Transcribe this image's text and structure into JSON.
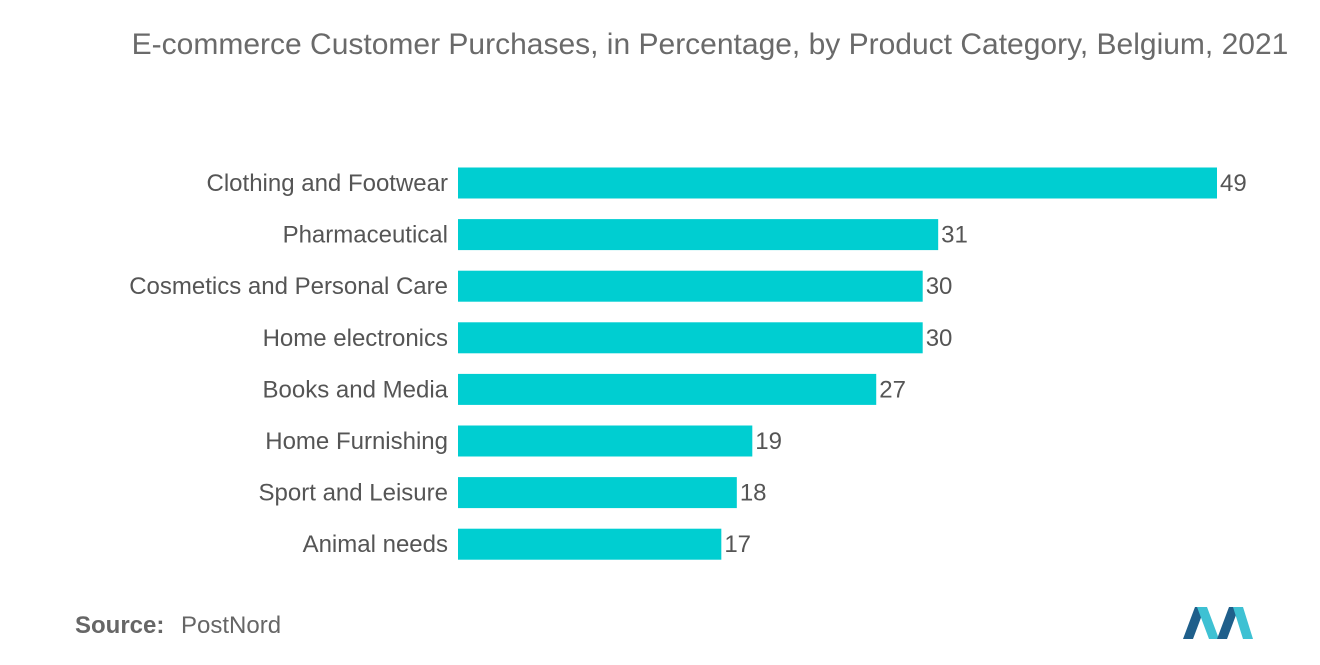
{
  "title": "E-commerce Customer Purchases, in Percentage, by Product Category, Belgium, 2021",
  "source": {
    "label": "Source:",
    "value": "PostNord"
  },
  "colors": {
    "bar": "#00CED1",
    "text": "#555555",
    "logo_dark": "#1F5F8B",
    "logo_light": "#3EC1D3"
  },
  "chart_data": {
    "type": "bar",
    "orientation": "horizontal",
    "title": "E-commerce Customer Purchases, in Percentage, by Product Category, Belgium, 2021",
    "xlabel": "",
    "ylabel": "",
    "categories": [
      "Clothing and Footwear",
      "Pharmaceutical",
      "Cosmetics and Personal Care",
      "Home electronics",
      "Books and Media",
      "Home Furnishing",
      "Sport and Leisure",
      "Animal needs"
    ],
    "values": [
      49,
      31,
      30,
      30,
      27,
      19,
      18,
      17
    ],
    "xlim": [
      0,
      49
    ],
    "grid": false,
    "legend": "none"
  }
}
